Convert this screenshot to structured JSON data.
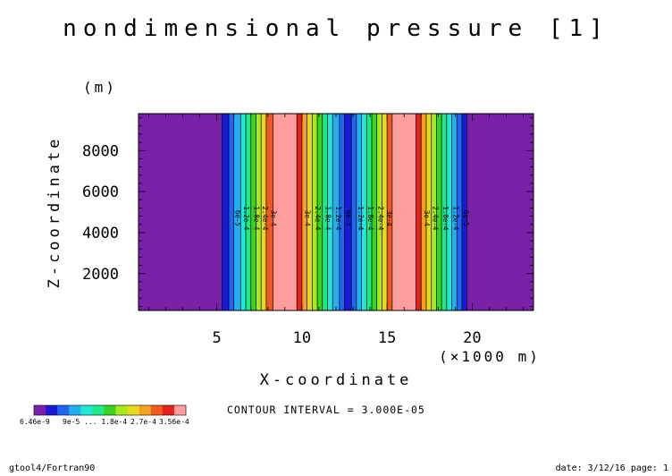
{
  "chart_data": {
    "type": "heatmap",
    "title": "nondimensional pressure [1]",
    "xlabel": "X-coordinate",
    "x_unit": "(×1000 m)",
    "ylabel": "Z-coordinate",
    "y_unit": "(m)",
    "xlim": [
      0.4,
      23.6
    ],
    "ylim": [
      200,
      9800
    ],
    "x_ticks": [
      5,
      10,
      15,
      20
    ],
    "y_ticks": [
      2000,
      4000,
      6000,
      8000
    ],
    "x_minor_step": 1,
    "y_minor_step": 400,
    "grid": false,
    "field_varies_along": "x",
    "level_colors": [
      "#7a1fa8",
      "#1a1ad6",
      "#1f66f0",
      "#23aef0",
      "#1fe8d8",
      "#1fe88a",
      "#3ad41f",
      "#a8e81f",
      "#e8d81f",
      "#f5a21f",
      "#f05a1f",
      "#e81f1f",
      "#ff9d9d"
    ],
    "bands": [
      {
        "x0": 0.4,
        "x1": 5.3,
        "level": 0
      },
      {
        "x0": 5.3,
        "x1": 5.7,
        "level": 1
      },
      {
        "x0": 5.7,
        "x1": 6.0,
        "level": 2
      },
      {
        "x0": 6.0,
        "x1": 6.4,
        "level": 3
      },
      {
        "x0": 6.4,
        "x1": 6.7,
        "level": 4
      },
      {
        "x0": 6.7,
        "x1": 7.0,
        "level": 5
      },
      {
        "x0": 7.0,
        "x1": 7.3,
        "level": 6
      },
      {
        "x0": 7.3,
        "x1": 7.6,
        "level": 7
      },
      {
        "x0": 7.6,
        "x1": 7.9,
        "level": 8
      },
      {
        "x0": 7.9,
        "x1": 8.3,
        "level": 10
      },
      {
        "x0": 8.3,
        "x1": 9.7,
        "level": 12
      },
      {
        "x0": 9.7,
        "x1": 10.0,
        "level": 11
      },
      {
        "x0": 10.0,
        "x1": 10.3,
        "level": 9
      },
      {
        "x0": 10.3,
        "x1": 10.6,
        "level": 8
      },
      {
        "x0": 10.6,
        "x1": 10.9,
        "level": 7
      },
      {
        "x0": 10.9,
        "x1": 11.2,
        "level": 6
      },
      {
        "x0": 11.2,
        "x1": 11.5,
        "level": 5
      },
      {
        "x0": 11.5,
        "x1": 11.8,
        "level": 4
      },
      {
        "x0": 11.8,
        "x1": 12.2,
        "level": 3
      },
      {
        "x0": 12.2,
        "x1": 12.5,
        "level": 2
      },
      {
        "x0": 12.5,
        "x1": 12.9,
        "level": 1
      },
      {
        "x0": 12.9,
        "x1": 13.2,
        "level": 2
      },
      {
        "x0": 13.2,
        "x1": 13.5,
        "level": 3
      },
      {
        "x0": 13.5,
        "x1": 13.8,
        "level": 4
      },
      {
        "x0": 13.8,
        "x1": 14.1,
        "level": 5
      },
      {
        "x0": 14.1,
        "x1": 14.4,
        "level": 6
      },
      {
        "x0": 14.4,
        "x1": 14.7,
        "level": 7
      },
      {
        "x0": 14.7,
        "x1": 15.0,
        "level": 8
      },
      {
        "x0": 15.0,
        "x1": 15.3,
        "level": 10
      },
      {
        "x0": 15.3,
        "x1": 16.7,
        "level": 12
      },
      {
        "x0": 16.7,
        "x1": 17.0,
        "level": 11
      },
      {
        "x0": 17.0,
        "x1": 17.3,
        "level": 9
      },
      {
        "x0": 17.3,
        "x1": 17.6,
        "level": 8
      },
      {
        "x0": 17.6,
        "x1": 17.9,
        "level": 7
      },
      {
        "x0": 17.9,
        "x1": 18.2,
        "level": 6
      },
      {
        "x0": 18.2,
        "x1": 18.5,
        "level": 5
      },
      {
        "x0": 18.5,
        "x1": 18.8,
        "level": 4
      },
      {
        "x0": 18.8,
        "x1": 19.1,
        "level": 3
      },
      {
        "x0": 19.1,
        "x1": 19.4,
        "level": 2
      },
      {
        "x0": 19.4,
        "x1": 19.7,
        "level": 1
      },
      {
        "x0": 19.7,
        "x1": 23.6,
        "level": 0
      }
    ],
    "contour_labels": [
      {
        "x": 6.1,
        "y": 4700,
        "text": "6e-5"
      },
      {
        "x": 6.6,
        "y": 4700,
        "text": "1.2e-4"
      },
      {
        "x": 7.2,
        "y": 4700,
        "text": "1.8e-4"
      },
      {
        "x": 7.7,
        "y": 4700,
        "text": "2.4e-4"
      },
      {
        "x": 8.2,
        "y": 4700,
        "text": "3e-4"
      },
      {
        "x": 10.2,
        "y": 4700,
        "text": "3e-4"
      },
      {
        "x": 10.8,
        "y": 4700,
        "text": "2.4e-4"
      },
      {
        "x": 11.4,
        "y": 4700,
        "text": "1.8e-4"
      },
      {
        "x": 12.0,
        "y": 4700,
        "text": "1.2e-4"
      },
      {
        "x": 12.6,
        "y": 4700,
        "text": "6e-5"
      },
      {
        "x": 13.3,
        "y": 4700,
        "text": "1.2e-4"
      },
      {
        "x": 13.9,
        "y": 4700,
        "text": "1.8e-4"
      },
      {
        "x": 14.5,
        "y": 4700,
        "text": "2.4e-4"
      },
      {
        "x": 15.0,
        "y": 4700,
        "text": "3e-4"
      },
      {
        "x": 17.2,
        "y": 4700,
        "text": "3e-4"
      },
      {
        "x": 17.7,
        "y": 4700,
        "text": "2.4e-4"
      },
      {
        "x": 18.3,
        "y": 4700,
        "text": "1.8e-4"
      },
      {
        "x": 18.9,
        "y": 4700,
        "text": "1.2e-4"
      },
      {
        "x": 19.5,
        "y": 4700,
        "text": "6e-5"
      }
    ],
    "colorbar": {
      "min_label": "6.46e-9",
      "mid_label_overlap": "9e-5 ... 1.8e-4",
      "label_3": "2.7e-4",
      "max_label": "3.56e-4"
    },
    "contour_interval": "CONTOUR INTERVAL = 3.000E-05"
  },
  "footer": {
    "left": "gtool4/Fortran90",
    "right": "date: 3/12/16 page: 1"
  }
}
